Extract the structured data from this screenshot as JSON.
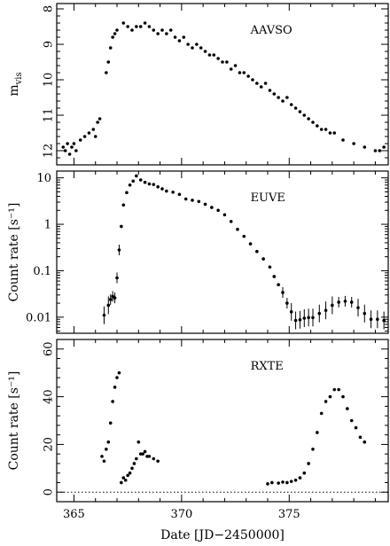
{
  "chart_data": [
    {
      "type": "scatter",
      "panel": "AAVSO",
      "label": "AAVSO",
      "ylabel": "m_vis",
      "yscale": "linear",
      "ylim": [
        12.4,
        7.85
      ],
      "yticks": [
        8,
        9,
        10,
        11,
        12
      ],
      "xlim": [
        364.2,
        379.6
      ],
      "x": [
        364.5,
        364.6,
        364.7,
        364.8,
        364.9,
        365.0,
        365.1,
        365.3,
        365.5,
        365.7,
        365.9,
        366.0,
        366.1,
        366.2,
        366.5,
        366.6,
        366.7,
        366.8,
        366.9,
        367.0,
        367.3,
        367.5,
        367.7,
        367.9,
        368.1,
        368.3,
        368.5,
        368.7,
        368.9,
        369.1,
        369.3,
        369.5,
        369.7,
        369.9,
        370.1,
        370.3,
        370.5,
        370.7,
        370.9,
        371.1,
        371.3,
        371.5,
        371.7,
        371.9,
        372.1,
        372.3,
        372.5,
        372.7,
        372.9,
        373.1,
        373.3,
        373.5,
        373.7,
        373.9,
        374.1,
        374.3,
        374.5,
        374.7,
        374.9,
        375.1,
        375.3,
        375.5,
        375.7,
        375.9,
        376.1,
        376.3,
        376.5,
        376.7,
        376.9,
        377.1,
        377.5,
        378.0,
        378.5,
        379.0,
        379.2,
        379.4
      ],
      "y": [
        11.9,
        12.0,
        11.8,
        12.1,
        11.9,
        11.8,
        12.0,
        11.7,
        11.6,
        11.5,
        11.4,
        11.6,
        11.2,
        11.1,
        9.8,
        9.5,
        9.1,
        8.8,
        8.7,
        8.6,
        8.4,
        8.5,
        8.6,
        8.5,
        8.5,
        8.4,
        8.5,
        8.6,
        8.7,
        8.6,
        8.7,
        8.6,
        8.8,
        8.9,
        8.8,
        9.0,
        9.1,
        9.0,
        9.1,
        9.2,
        9.3,
        9.3,
        9.4,
        9.5,
        9.5,
        9.7,
        9.6,
        9.8,
        9.8,
        9.9,
        10.0,
        10.1,
        10.2,
        10.1,
        10.3,
        10.4,
        10.5,
        10.6,
        10.5,
        10.7,
        10.8,
        10.9,
        11.0,
        11.1,
        11.2,
        11.3,
        11.4,
        11.4,
        11.5,
        11.5,
        11.7,
        11.8,
        11.9,
        12.0,
        12.0,
        11.9
      ]
    },
    {
      "type": "scatter",
      "panel": "EUVE",
      "label": "EUVE",
      "ylabel": "Count rate [s⁻¹]",
      "yscale": "log",
      "ylim": [
        0.0045,
        14
      ],
      "yticks": [
        0.01,
        0.1,
        1,
        10
      ],
      "ytick_labels": [
        "0.01",
        "0.1",
        "1",
        "10"
      ],
      "xlim": [
        364.2,
        379.6
      ],
      "x": [
        366.4,
        366.6,
        366.7,
        366.8,
        366.9,
        367.0,
        367.1,
        367.2,
        367.3,
        367.45,
        367.6,
        367.75,
        367.9,
        368.1,
        368.3,
        368.5,
        368.7,
        368.9,
        369.1,
        369.3,
        369.6,
        369.9,
        370.2,
        370.5,
        370.8,
        371.1,
        371.4,
        371.7,
        372.0,
        372.3,
        372.6,
        372.9,
        373.2,
        373.5,
        373.8,
        374.1,
        374.3,
        374.5,
        374.7,
        374.9,
        375.1,
        375.3,
        375.5,
        375.7,
        375.9,
        376.1,
        376.4,
        376.7,
        377.0,
        377.3,
        377.6,
        377.9,
        378.2,
        378.5,
        378.8,
        379.1,
        379.4
      ],
      "y": [
        0.011,
        0.018,
        0.024,
        0.028,
        0.026,
        0.07,
        0.28,
        0.9,
        2.6,
        4.8,
        7.0,
        8.5,
        11.0,
        9.0,
        8.0,
        7.4,
        7.2,
        6.4,
        5.8,
        5.2,
        4.9,
        4.4,
        3.5,
        3.3,
        3.1,
        2.7,
        2.3,
        2.0,
        1.6,
        1.15,
        0.78,
        0.55,
        0.38,
        0.26,
        0.18,
        0.12,
        0.075,
        0.05,
        0.034,
        0.02,
        0.013,
        0.0085,
        0.0088,
        0.0095,
        0.0098,
        0.0098,
        0.012,
        0.014,
        0.018,
        0.021,
        0.022,
        0.021,
        0.016,
        0.012,
        0.009,
        0.009,
        0.0085
      ]
    },
    {
      "type": "scatter",
      "panel": "RXTE",
      "label": "RXTE",
      "ylabel": "Count rate [s⁻¹]",
      "yscale": "linear",
      "ylim": [
        -4,
        64
      ],
      "yticks": [
        0,
        20,
        40,
        60
      ],
      "xlim": [
        364.2,
        379.6
      ],
      "xlabel": "Date [JD−2450000]",
      "xticks": [
        365,
        370,
        375
      ],
      "x": [
        366.3,
        366.4,
        366.5,
        366.6,
        366.7,
        366.8,
        366.9,
        367.0,
        367.1,
        367.2,
        367.3,
        367.4,
        367.5,
        367.6,
        367.7,
        367.8,
        367.9,
        368.0,
        368.1,
        368.2,
        368.3,
        368.4,
        368.5,
        368.7,
        368.9,
        374.0,
        374.2,
        374.5,
        374.7,
        374.9,
        375.1,
        375.3,
        375.5,
        375.7,
        375.9,
        376.1,
        376.3,
        376.5,
        376.7,
        376.9,
        377.1,
        377.3,
        377.5,
        377.7,
        377.9,
        378.1,
        378.3,
        378.5
      ],
      "y": [
        15,
        13,
        18,
        21,
        29,
        38,
        44,
        48,
        50,
        4,
        6,
        5,
        7,
        8,
        10,
        12,
        14,
        21,
        16,
        16,
        17,
        15,
        15,
        14,
        13,
        3.5,
        4,
        3.8,
        4.2,
        4.0,
        4.5,
        5,
        6,
        8,
        12,
        18,
        25,
        33,
        38,
        40,
        43,
        43,
        40,
        35,
        30,
        27,
        23,
        21
      ]
    }
  ]
}
